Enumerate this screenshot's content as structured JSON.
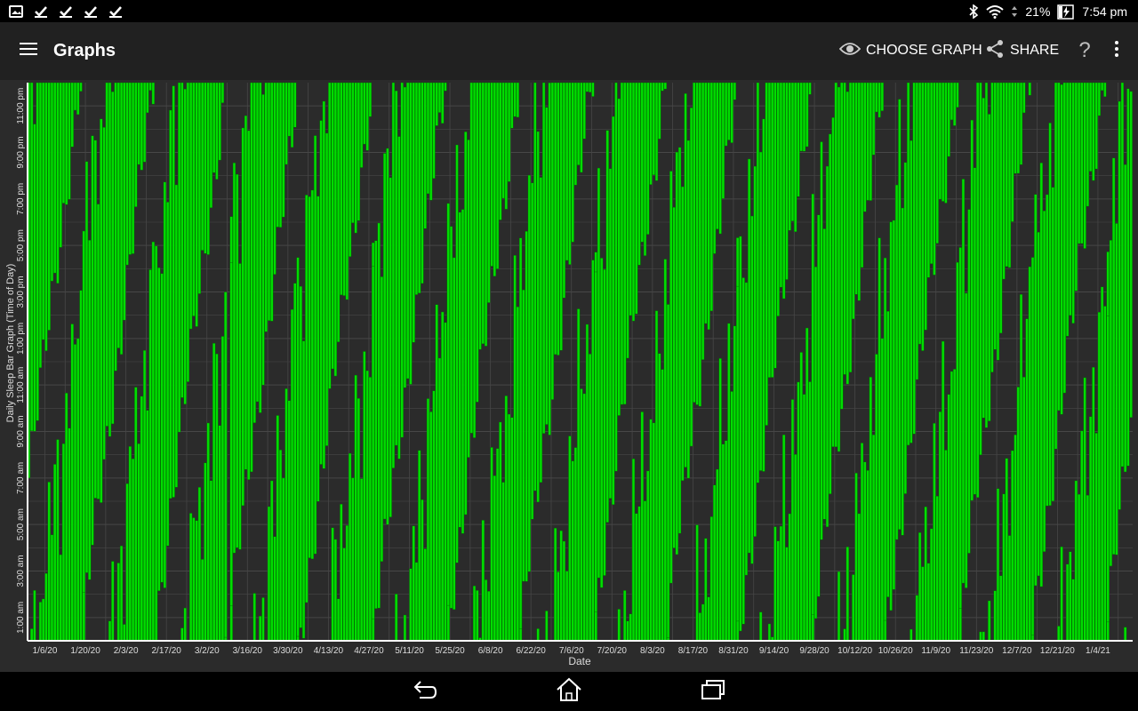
{
  "status_bar": {
    "notification_icons": [
      "gallery-icon",
      "check-icon",
      "check-icon",
      "check-icon",
      "check-icon"
    ],
    "battery": "21%",
    "time": "7:54 pm"
  },
  "app_bar": {
    "title": "Graphs",
    "choose_graph_label": "CHOOSE GRAPH",
    "share_label": "SHARE",
    "help_label": "?"
  },
  "colors": {
    "bar_fill": "#00dd00",
    "bar_edge": "#006600",
    "plot_bg": "#2b2b2b",
    "grid": "#474747",
    "axis": "#ffffff",
    "text": "#dddddd"
  },
  "chart_data": {
    "type": "bar",
    "subtype": "daily-sleep-bars (vertical time-of-day bars per day, wrapping at midnight)",
    "ylabel": "Daily Sleep Bar Graph (Time of Day)",
    "xlabel": "Date",
    "y_unit": "hours since midnight",
    "ylim": [
      0,
      24
    ],
    "y_ticks": [
      {
        "value": 1,
        "label": "1:00 am"
      },
      {
        "value": 3,
        "label": "3:00 am"
      },
      {
        "value": 5,
        "label": "5:00 am"
      },
      {
        "value": 7,
        "label": "7:00 am"
      },
      {
        "value": 9,
        "label": "9:00 am"
      },
      {
        "value": 11,
        "label": "11:00 am"
      },
      {
        "value": 13,
        "label": "1:00 pm"
      },
      {
        "value": 15,
        "label": "3:00 pm"
      },
      {
        "value": 17,
        "label": "5:00 pm"
      },
      {
        "value": 19,
        "label": "7:00 pm"
      },
      {
        "value": 21,
        "label": "9:00 pm"
      },
      {
        "value": 23,
        "label": "11:00 pm"
      }
    ],
    "x_start": "2019-12-31",
    "x_end": "2021-01-16",
    "x_ticks": [
      {
        "date": "2020-01-06",
        "label": "1/6/20"
      },
      {
        "date": "2020-01-20",
        "label": "1/20/20"
      },
      {
        "date": "2020-02-03",
        "label": "2/3/20"
      },
      {
        "date": "2020-02-17",
        "label": "2/17/20"
      },
      {
        "date": "2020-03-02",
        "label": "3/2/20"
      },
      {
        "date": "2020-03-16",
        "label": "3/16/20"
      },
      {
        "date": "2020-03-30",
        "label": "3/30/20"
      },
      {
        "date": "2020-04-13",
        "label": "4/13/20"
      },
      {
        "date": "2020-04-27",
        "label": "4/27/20"
      },
      {
        "date": "2020-05-11",
        "label": "5/11/20"
      },
      {
        "date": "2020-05-25",
        "label": "5/25/20"
      },
      {
        "date": "2020-06-08",
        "label": "6/8/20"
      },
      {
        "date": "2020-06-22",
        "label": "6/22/20"
      },
      {
        "date": "2020-07-06",
        "label": "7/6/20"
      },
      {
        "date": "2020-07-20",
        "label": "7/20/20"
      },
      {
        "date": "2020-08-03",
        "label": "8/3/20"
      },
      {
        "date": "2020-08-17",
        "label": "8/17/20"
      },
      {
        "date": "2020-08-31",
        "label": "8/31/20"
      },
      {
        "date": "2020-09-14",
        "label": "9/14/20"
      },
      {
        "date": "2020-09-28",
        "label": "9/28/20"
      },
      {
        "date": "2020-10-12",
        "label": "10/12/20"
      },
      {
        "date": "2020-10-26",
        "label": "10/26/20"
      },
      {
        "date": "2020-11-09",
        "label": "11/9/20"
      },
      {
        "date": "2020-11-23",
        "label": "11/23/20"
      },
      {
        "date": "2020-12-07",
        "label": "12/7/20"
      },
      {
        "date": "2020-12-21",
        "label": "12/21/20"
      },
      {
        "date": "2021-01-04",
        "label": "1/4/21"
      }
    ],
    "sleep_model": {
      "description": "Free-running (non-24) sleep: sleep onset drifts later by ~0.95 h/day; each bar spans onset to wake, wrapping past midnight into the next day's column.",
      "first_day": "2019-12-31",
      "onset_hour_day0": 7.0,
      "drift_hours_per_day": 0.95,
      "mean_duration_hours": 15.5,
      "duration_variation_hours": 3.0
    }
  },
  "nav_bar": {
    "buttons": [
      "back-icon",
      "home-icon",
      "recents-icon"
    ]
  }
}
